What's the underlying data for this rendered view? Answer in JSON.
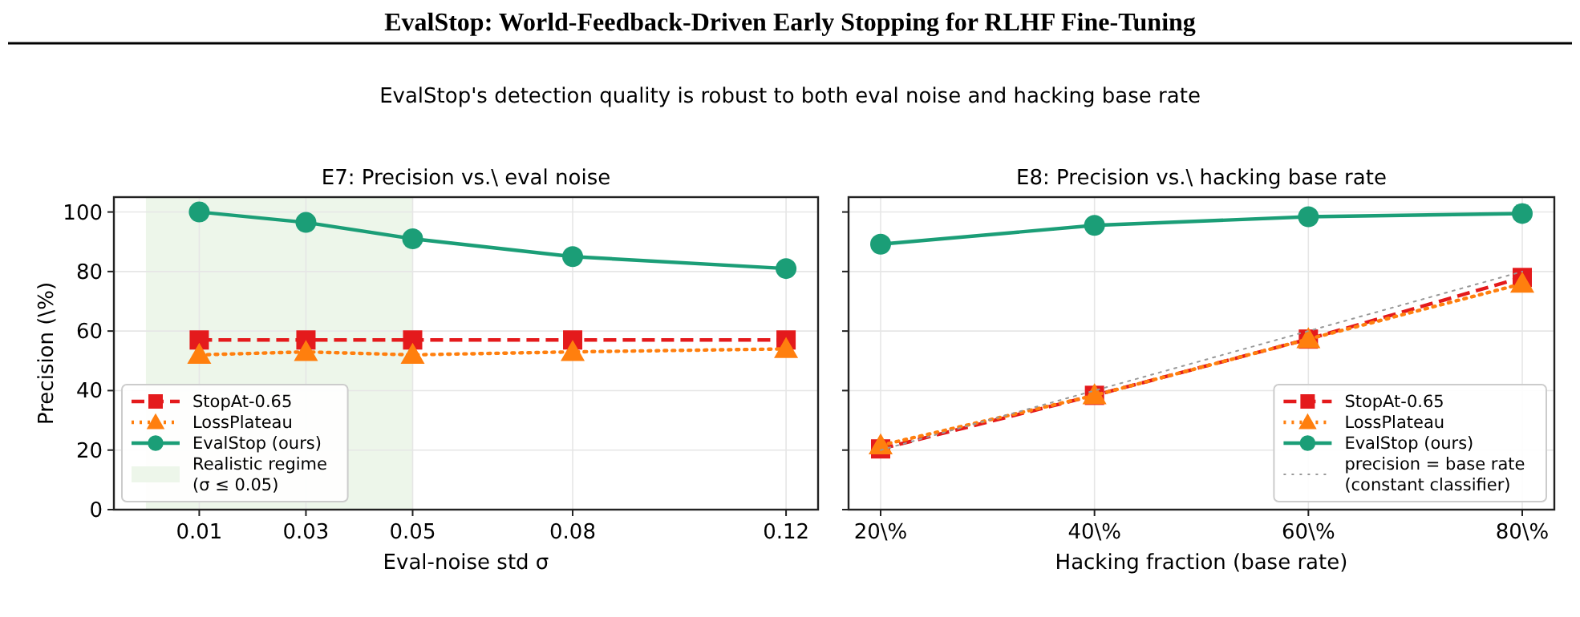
{
  "chart_data": [
    {
      "type": "line",
      "title": "E7: Precision vs.\\ eval noise",
      "xlabel": "Eval-noise std σ",
      "ylabel": "Precision (\\%)",
      "annotations": [
        "EvalStop: World-Feedback-Driven Early Stopping for RLHF Fine-Tuning",
        "EvalStop's detection quality is robust to both eval noise and hacking base rate"
      ],
      "x": [
        0.01,
        0.03,
        0.05,
        0.08,
        0.12
      ],
      "xlim": [
        -0.006,
        0.126
      ],
      "xticks": [
        0.01,
        0.03,
        0.05,
        0.08,
        0.12
      ],
      "ylim": [
        0,
        105
      ],
      "yticks": [
        0,
        20,
        40,
        60,
        80,
        100
      ],
      "grid": true,
      "legend": "bottom left",
      "bands": [
        {
          "axis": "x",
          "from": 0,
          "to": 0.05,
          "label": "Realistic regime (σ ≤ 0.05)",
          "color": "#edf6ea"
        }
      ],
      "series": [
        {
          "name": "StopAt-0.65",
          "color": "#e41a1c",
          "marker": "square",
          "line_style": "dashed",
          "values": [
            57,
            57,
            57,
            57,
            57
          ]
        },
        {
          "name": "LossPlateau",
          "color": "#ff7f0e",
          "marker": "triangle",
          "line_style": "dotted",
          "values": [
            52,
            53,
            52,
            53,
            54
          ]
        },
        {
          "name": "EvalStop (ours)",
          "color": "#1b9e77",
          "marker": "circle",
          "line_style": "solid",
          "values": [
            100,
            96.5,
            91,
            85,
            81
          ]
        }
      ]
    },
    {
      "type": "line",
      "title": "E8: Precision vs.\\ hacking base rate",
      "xlabel": "Hacking fraction (base rate)",
      "x": [
        20,
        40,
        60,
        80
      ],
      "xlim": [
        17,
        83
      ],
      "xticks": [
        {
          "value": 20,
          "label": "20\\%"
        },
        {
          "value": 40,
          "label": "40\\%"
        },
        {
          "value": 60,
          "label": "60\\%"
        },
        {
          "value": 80,
          "label": "80\\%"
        }
      ],
      "ylim": [
        0,
        105
      ],
      "yticks": [
        {
          "value": 0,
          "label": null
        },
        {
          "value": 20,
          "label": null
        },
        {
          "value": 40,
          "label": null
        },
        {
          "value": 60,
          "label": null
        },
        {
          "value": 80,
          "label": null
        },
        {
          "value": 100,
          "label": null
        }
      ],
      "tick_labels": "x",
      "grid": true,
      "legend": "bottom right",
      "series": [
        {
          "name": "StopAt-0.65",
          "color": "#e41a1c",
          "marker": "square",
          "line_style": "dashed",
          "values": [
            20.4,
            38.4,
            57.3,
            78
          ]
        },
        {
          "name": "LossPlateau",
          "color": "#ff7f0e",
          "marker": "triangle",
          "line_style": "dotted",
          "values": [
            21.6,
            38.4,
            57.3,
            75.9
          ]
        },
        {
          "name": "EvalStop (ours)",
          "color": "#1b9e77",
          "marker": "circle",
          "line_style": "solid",
          "values": [
            89.2,
            95.5,
            98.4,
            99.5
          ]
        },
        {
          "name": "precision = base rate (constant classifier)",
          "color": "#999999",
          "marker": "none",
          "line_style": "dotted",
          "x": [
            20,
            80
          ],
          "values": [
            20,
            80
          ]
        }
      ]
    }
  ]
}
